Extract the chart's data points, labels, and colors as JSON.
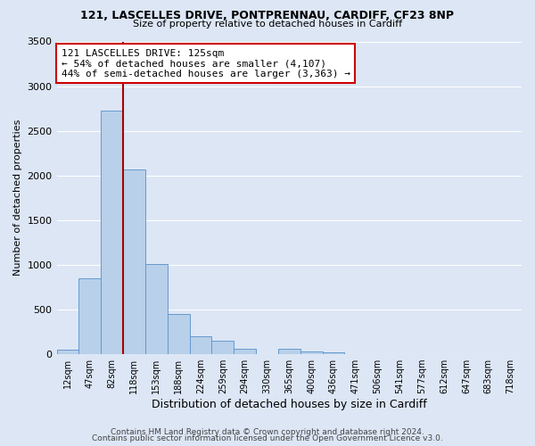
{
  "title": "121, LASCELLES DRIVE, PONTPRENNAU, CARDIFF, CF23 8NP",
  "subtitle": "Size of property relative to detached houses in Cardiff",
  "xlabel": "Distribution of detached houses by size in Cardiff",
  "ylabel": "Number of detached properties",
  "bar_color": "#b8d0ea",
  "bar_edge_color": "#6699cc",
  "background_color": "#dce6f5",
  "grid_color": "#ffffff",
  "tick_labels": [
    "12sqm",
    "47sqm",
    "82sqm",
    "118sqm",
    "153sqm",
    "188sqm",
    "224sqm",
    "259sqm",
    "294sqm",
    "330sqm",
    "365sqm",
    "400sqm",
    "436sqm",
    "471sqm",
    "506sqm",
    "541sqm",
    "577sqm",
    "612sqm",
    "647sqm",
    "683sqm",
    "718sqm"
  ],
  "bar_heights": [
    55,
    850,
    2730,
    2070,
    1010,
    455,
    205,
    150,
    60,
    0,
    60,
    35,
    25,
    0,
    0,
    0,
    0,
    0,
    0,
    0,
    0
  ],
  "ylim": [
    0,
    3500
  ],
  "yticks": [
    0,
    500,
    1000,
    1500,
    2000,
    2500,
    3000,
    3500
  ],
  "vline_x_idx": 2.5,
  "vline_color": "#aa0000",
  "annotation_title": "121 LASCELLES DRIVE: 125sqm",
  "annotation_line1": "← 54% of detached houses are smaller (4,107)",
  "annotation_line2": "44% of semi-detached houses are larger (3,363) →",
  "annotation_box_color": "#ffffff",
  "annotation_box_edge": "#cc0000",
  "footer1": "Contains HM Land Registry data © Crown copyright and database right 2024.",
  "footer2": "Contains public sector information licensed under the Open Government Licence v3.0."
}
